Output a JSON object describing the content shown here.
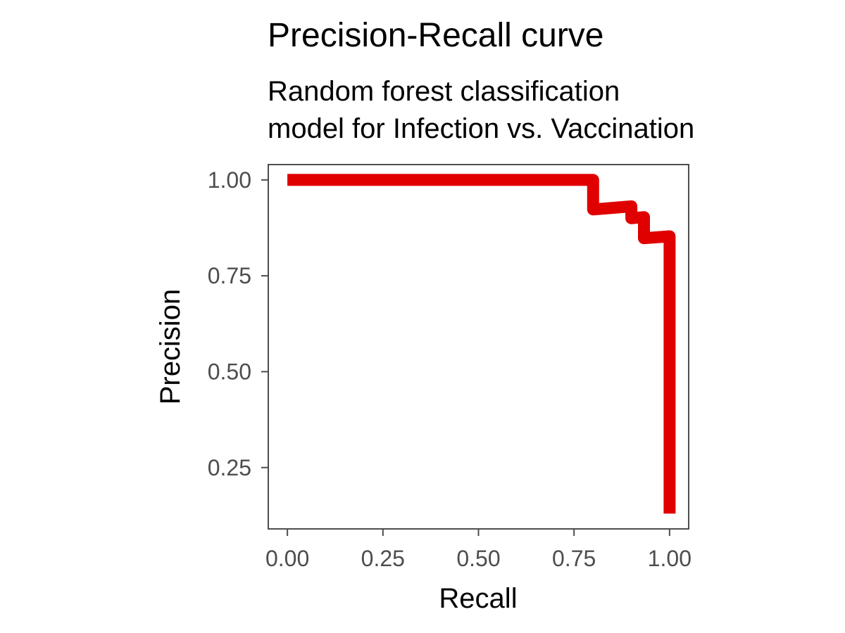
{
  "chart_data": {
    "type": "line",
    "title": "Precision-Recall curve",
    "subtitle_lines": [
      "Random forest classification",
      "model for Infection vs. Vaccination"
    ],
    "xlabel": "Recall",
    "ylabel": "Precision",
    "xlim": [
      -0.05,
      1.05
    ],
    "ylim": [
      0.09,
      1.04
    ],
    "x_ticks": [
      0,
      0.25,
      0.5,
      0.75,
      1
    ],
    "x_tick_labels": [
      "0.00",
      "0.25",
      "0.50",
      "0.75",
      "1.00"
    ],
    "y_ticks": [
      0.25,
      0.5,
      0.75,
      1
    ],
    "y_tick_labels": [
      "0.25",
      "0.50",
      "0.75",
      "1.00"
    ],
    "grid": false,
    "series": [
      {
        "color": "#e00000",
        "x": [
          0.0,
          0.8,
          0.8,
          0.9,
          0.9,
          0.933,
          0.933,
          1.0,
          1.0
        ],
        "y": [
          1.0,
          1.0,
          0.923,
          0.931,
          0.9,
          0.903,
          0.848,
          0.853,
          0.13
        ]
      }
    ]
  }
}
